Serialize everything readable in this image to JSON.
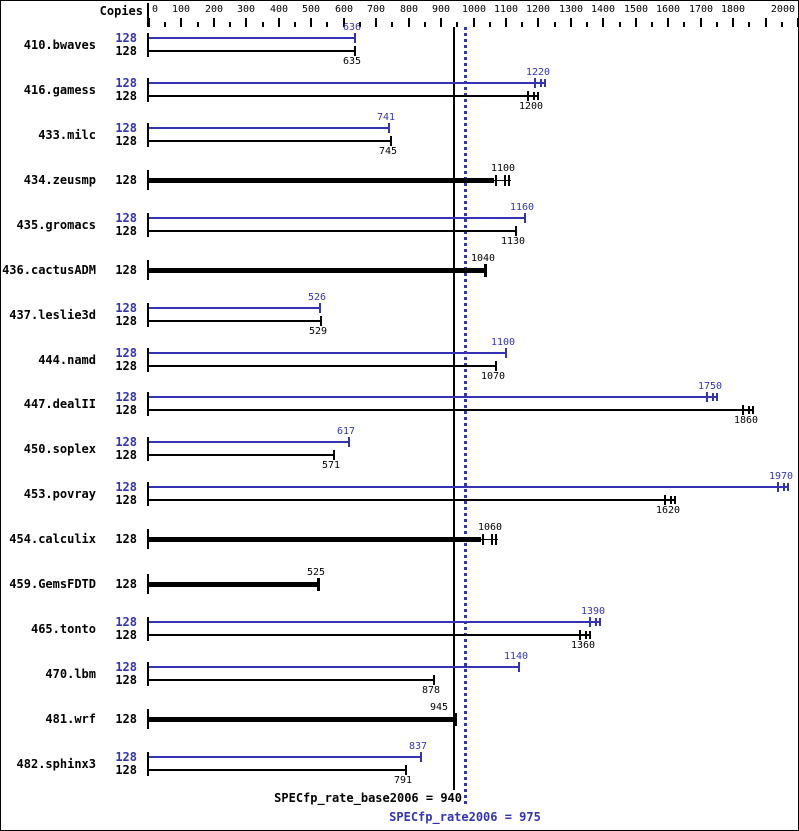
{
  "copies_header": "Copies",
  "axis": {
    "min": 0,
    "max": 2000,
    "minor_step": 50,
    "major_step": 100,
    "labeled_values": [
      0,
      100,
      200,
      300,
      400,
      500,
      600,
      700,
      800,
      900,
      1000,
      1100,
      1200,
      1300,
      1400,
      1500,
      1600,
      1700,
      1800,
      2000
    ]
  },
  "reference": {
    "base": {
      "label": "SPECfp_rate_base2006 = 940",
      "value": 940
    },
    "peak": {
      "label": "SPECfp_rate2006 = 975",
      "value": 975
    }
  },
  "colors": {
    "peak_blue": "#3333b4",
    "base_black": "#000000",
    "background": "#ffffff"
  },
  "chart_data": {
    "type": "bar",
    "orientation": "horizontal",
    "title": "",
    "xlabel": "",
    "ylabel": "Copies",
    "x_range": [
      0,
      2000
    ],
    "grid": false,
    "legend": "none",
    "reference_lines": [
      {
        "style": "solid",
        "value": 940,
        "label": "SPECfp_rate_base2006 = 940"
      },
      {
        "style": "dotted",
        "value": 975,
        "label": "SPECfp_rate2006 = 975"
      }
    ],
    "benchmarks": [
      {
        "name": "410.bwaves",
        "copies": 128,
        "peak": 636,
        "base": 635,
        "single": false,
        "peak_marks": false,
        "base_marks": false
      },
      {
        "name": "416.gamess",
        "copies": 128,
        "peak": 1220,
        "base": 1200,
        "single": false,
        "peak_marks": true,
        "base_marks": true
      },
      {
        "name": "433.milc",
        "copies": 128,
        "peak": 741,
        "base": 745,
        "single": false,
        "peak_marks": false,
        "base_marks": false
      },
      {
        "name": "434.zeusmp",
        "copies": 128,
        "peak": null,
        "base": 1100,
        "single": true,
        "base_marks": true
      },
      {
        "name": "435.gromacs",
        "copies": 128,
        "peak": 1160,
        "base": 1130,
        "single": false,
        "peak_marks": false,
        "base_marks": false
      },
      {
        "name": "436.cactusADM",
        "copies": 128,
        "peak": null,
        "base": 1040,
        "single": true,
        "base_marks": false
      },
      {
        "name": "437.leslie3d",
        "copies": 128,
        "peak": 526,
        "base": 529,
        "single": false,
        "peak_marks": false,
        "base_marks": false
      },
      {
        "name": "444.namd",
        "copies": 128,
        "peak": 1100,
        "base": 1070,
        "single": false,
        "peak_marks": false,
        "base_marks": false
      },
      {
        "name": "447.dealII",
        "copies": 128,
        "peak": 1750,
        "base": 1860,
        "single": false,
        "peak_marks": true,
        "base_marks": true
      },
      {
        "name": "450.soplex",
        "copies": 128,
        "peak": 617,
        "base": 571,
        "single": false,
        "peak_marks": false,
        "base_marks": false
      },
      {
        "name": "453.povray",
        "copies": 128,
        "peak": 1970,
        "base": 1620,
        "single": false,
        "peak_marks": true,
        "base_marks": true
      },
      {
        "name": "454.calculix",
        "copies": 128,
        "peak": null,
        "base": 1060,
        "single": true,
        "base_marks": true
      },
      {
        "name": "459.GemsFDTD",
        "copies": 128,
        "peak": null,
        "base": 525,
        "single": true,
        "base_marks": false
      },
      {
        "name": "465.tonto",
        "copies": 128,
        "peak": 1390,
        "base": 1360,
        "single": false,
        "peak_marks": true,
        "base_marks": true
      },
      {
        "name": "470.lbm",
        "copies": 128,
        "peak": 1140,
        "base": 878,
        "single": false,
        "peak_marks": false,
        "base_marks": false
      },
      {
        "name": "481.wrf",
        "copies": 128,
        "peak": null,
        "base": 945,
        "single": true,
        "base_marks": false,
        "base_label_dx": -17
      },
      {
        "name": "482.sphinx3",
        "copies": 128,
        "peak": 837,
        "base": 791,
        "single": false,
        "peak_marks": false,
        "base_marks": false
      }
    ]
  }
}
